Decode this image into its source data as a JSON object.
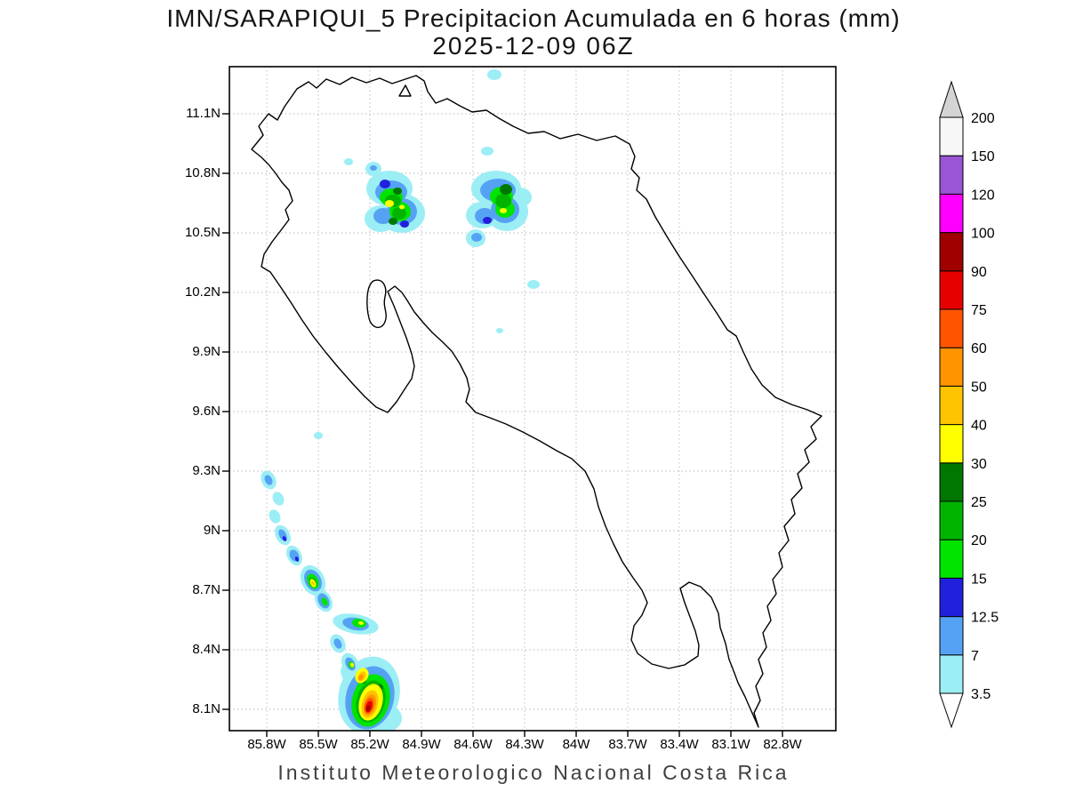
{
  "header": {
    "title": "IMN/SARAPIQUI_5 Precipitacion Acumulada en 6 horas (mm)",
    "valid_time": "2025-12-09 06Z"
  },
  "footer": {
    "caption": "Instituto Meteorologico Nacional Costa Rica"
  },
  "axes": {
    "lat_labels": [
      "11.1N",
      "10.8N",
      "10.5N",
      "10.2N",
      "9.9N",
      "9.6N",
      "9.3N",
      "9N",
      "8.7N",
      "8.4N",
      "8.1N"
    ],
    "lon_labels": [
      "85.8W",
      "85.5W",
      "85.2W",
      "84.9W",
      "84.6W",
      "84.3W",
      "84W",
      "83.7W",
      "83.4W",
      "83.1W",
      "82.8W"
    ]
  },
  "colorbar": {
    "levels_mm": [
      3.5,
      7,
      12.5,
      15,
      20,
      25,
      30,
      40,
      50,
      60,
      75,
      90,
      100,
      120,
      150,
      200
    ],
    "labels": [
      "3.5",
      "7",
      "12.5",
      "15",
      "20",
      "25",
      "30",
      "40",
      "50",
      "60",
      "75",
      "90",
      "100",
      "120",
      "150",
      "200"
    ]
  },
  "palette": {
    "3.5": "#9ceef5",
    "7": "#55a2f5",
    "12.5": "#2020dd",
    "15": "#00e400",
    "20": "#00b400",
    "25": "#007700",
    "30": "#ffff00",
    "40": "#ffc400",
    "50": "#ff9400",
    "60": "#ff5500",
    "75": "#e60000",
    "90": "#a00000",
    "100": "#ff00ff",
    "120": "#9955d4",
    "150": "#f7f7f7",
    "200": "#d4d4d4",
    "below_min": "#ffffff",
    "frame": "#000000",
    "grid": "#9a9a9a"
  },
  "chart_data": {
    "type": "heatmap",
    "subtype": "filled-contour precipitation map",
    "title": "IMN/SARAPIQUI_5 Precipitacion Acumulada en 6 horas (mm)",
    "valid_time": "2025-12-09 06Z",
    "units": "mm",
    "region": "Costa Rica",
    "x_ticks_deg_w": [
      85.8,
      85.5,
      85.2,
      84.9,
      84.6,
      84.3,
      84.0,
      83.7,
      83.4,
      83.1,
      82.8
    ],
    "y_ticks_deg_n": [
      11.1,
      10.8,
      10.5,
      10.2,
      9.9,
      9.6,
      9.3,
      9.0,
      8.7,
      8.4,
      8.1
    ],
    "contour_levels_mm": [
      3.5,
      7,
      12.5,
      15,
      20,
      25,
      30,
      40,
      50,
      60,
      75,
      90,
      100,
      120,
      150,
      200
    ],
    "grid": "dotted",
    "legend_position": "right",
    "precip_features": [
      {
        "id": "cell-nw-guanacaste",
        "lon_w": 85.05,
        "lat_n": 10.65,
        "peak_mm": 40
      },
      {
        "id": "cell-north-central",
        "lon_w": 84.44,
        "lat_n": 10.65,
        "peak_mm": 40
      },
      {
        "id": "dot-north-edge",
        "lon_w": 84.48,
        "lat_n": 11.3,
        "peak_mm": 7
      },
      {
        "id": "dot-west-of-cell",
        "lon_w": 84.52,
        "lat_n": 10.91,
        "peak_mm": 7
      },
      {
        "id": "dot-10.2n",
        "lon_w": 84.25,
        "lat_n": 10.24,
        "peak_mm": 7
      },
      {
        "id": "dot-10n",
        "lon_w": 84.44,
        "lat_n": 10.01,
        "peak_mm": 7
      },
      {
        "id": "dot-9.5n",
        "lon_w": 85.5,
        "lat_n": 9.48,
        "peak_mm": 7
      },
      {
        "id": "offshore-band-start",
        "lon_w": 85.79,
        "lat_n": 9.26,
        "peak_mm": 12.5
      },
      {
        "id": "offshore-band-9n",
        "lon_w": 85.7,
        "lat_n": 8.97,
        "peak_mm": 15
      },
      {
        "id": "offshore-band-8.75n",
        "lon_w": 85.53,
        "lat_n": 8.75,
        "peak_mm": 50
      },
      {
        "id": "offshore-band-8.5n",
        "lon_w": 85.28,
        "lat_n": 8.53,
        "peak_mm": 40
      },
      {
        "id": "offshore-band-south-max",
        "lon_w": 85.2,
        "lat_n": 8.13,
        "peak_mm": 100
      }
    ]
  }
}
